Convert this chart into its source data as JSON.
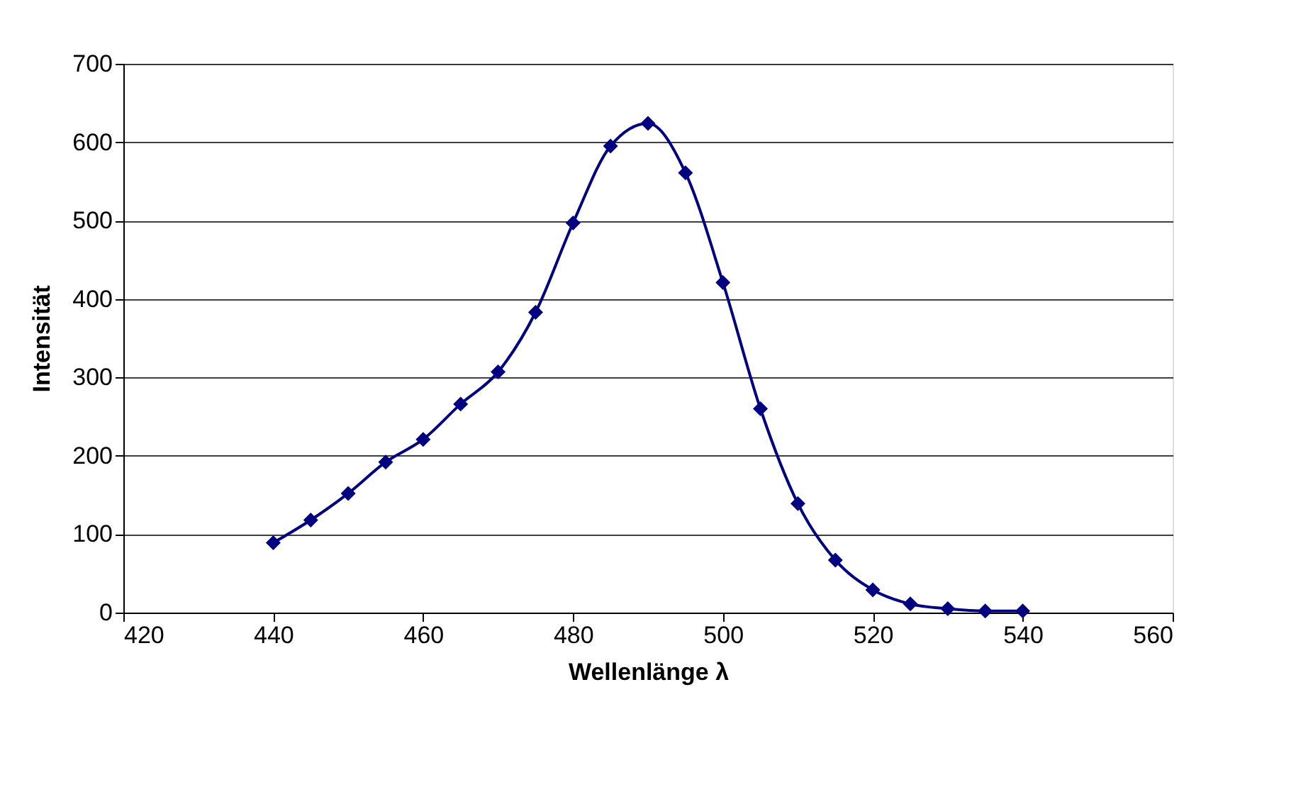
{
  "chart_data": {
    "type": "line",
    "xlabel": "Wellenlänge λ",
    "ylabel": "Intensität",
    "x": [
      440,
      445,
      450,
      455,
      460,
      465,
      470,
      475,
      480,
      485,
      490,
      495,
      500,
      505,
      510,
      515,
      520,
      525,
      530,
      535,
      540
    ],
    "series": [
      {
        "color": "#000080",
        "values": [
          89,
          118,
          152,
          192,
          221,
          266,
          307,
          383,
          497,
          595,
          624,
          561,
          421,
          260,
          139,
          67,
          29,
          11,
          5,
          2,
          2
        ]
      }
    ],
    "xlim": [
      420,
      560
    ],
    "xticks": [
      420,
      440,
      460,
      480,
      500,
      520,
      540,
      560
    ],
    "ylim": [
      0,
      700
    ],
    "yticks": [
      0,
      100,
      200,
      300,
      400,
      500,
      600,
      700
    ],
    "grid": "y",
    "marker": "diamond",
    "line_style": "solid"
  }
}
